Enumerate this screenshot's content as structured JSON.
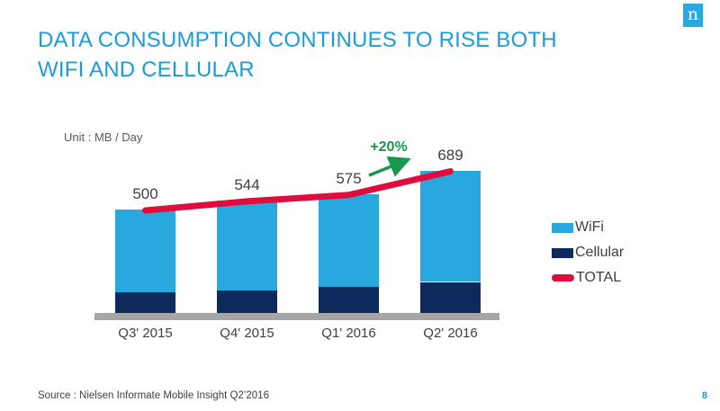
{
  "header": {
    "title": "DATA CONSUMPTION CONTINUES TO RISE BOTH WIFI AND CELLULAR"
  },
  "logo": {
    "letter": "n"
  },
  "colors": {
    "title_blue": "#1B9CD8",
    "logo_blue": "#29A9E0",
    "page_number_blue": "#1B9CD8",
    "baseline_gray": "#A6A6A6",
    "unit_text_gray": "#595959",
    "footer_text_gray": "#404040"
  },
  "chart_data": {
    "type": "bar",
    "subtype": "stacked-bars-with-total-line",
    "unit_label": "Unit : MB / Day",
    "categories": [
      "Q3' 2015",
      "Q4' 2015",
      "Q1' 2016",
      "Q2' 2016"
    ],
    "series": [
      {
        "name": "WiFi",
        "values": [
          400,
          434,
          450,
          539
        ],
        "color": "#29A8DF"
      },
      {
        "name": "Cellular",
        "values": [
          100,
          110,
          125,
          150
        ],
        "color": "#0E2A5C"
      }
    ],
    "totals": {
      "name": "TOTAL",
      "values": [
        500,
        544,
        575,
        689
      ],
      "color": "#E00C3C"
    },
    "annotation": {
      "text": "+20%",
      "color": "#17984A"
    },
    "legend": [
      "WiFi",
      "Cellular",
      "TOTAL"
    ],
    "legend_position": "right",
    "grid": false,
    "value_labels_shown": [
      "500",
      "544",
      "575",
      "689"
    ]
  },
  "footer": {
    "source": "Source : Nielsen  Informate Mobile Insight Q2’2016",
    "page_number": "8"
  }
}
